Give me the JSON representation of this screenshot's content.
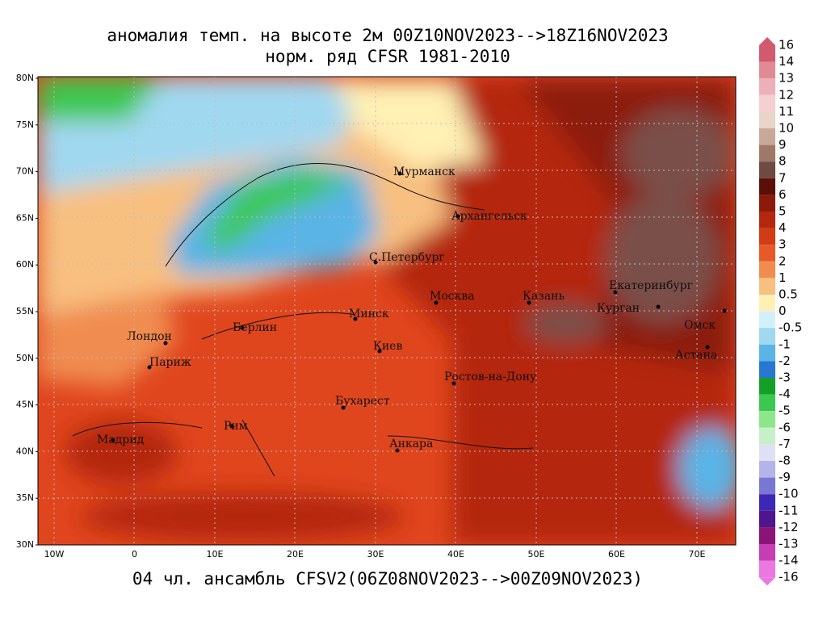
{
  "header": {
    "title": "аномалия темп. на высоте 2м 00Z10NOV2023-->18Z16NOV2023",
    "subtitle": "норм. ряд CFSR 1981-2010"
  },
  "footer": "04 чл. ансамбль CFSV2(06Z08NOV2023-->00Z09NOV2023)",
  "lat_labels": [
    "80N",
    "75N",
    "70N",
    "65N",
    "60N",
    "55N",
    "50N",
    "45N",
    "40N",
    "35N",
    "30N"
  ],
  "lon_labels": [
    "10W",
    "0",
    "10E",
    "20E",
    "30E",
    "40E",
    "50E",
    "60E",
    "70E"
  ],
  "cities": [
    "Мурманск",
    "Архангельск",
    "С.Петербург",
    "Москва",
    "Казань",
    "Екатеринбург",
    "Курган",
    "Омск",
    "Астана",
    "Минск",
    "Берлин",
    "Лондон",
    "Париж",
    "Киев",
    "Ростов-на-Дону",
    "Бухарест",
    "Рим",
    "Мадрид",
    "Анкара"
  ],
  "colorbar": {
    "labels": [
      "16",
      "14",
      "13",
      "12",
      "11",
      "10",
      "9",
      "8",
      "7",
      "6",
      "5",
      "4",
      "3",
      "2",
      "1",
      "0.5",
      "0",
      "-0.5",
      "-1",
      "-2",
      "-3",
      "-4",
      "-5",
      "-6",
      "-7",
      "-8",
      "-9",
      "-10",
      "-11",
      "-12",
      "-13",
      "-14",
      "-16"
    ],
    "colors": [
      "#d25a6e",
      "#e08a96",
      "#eeb0b8",
      "#f5d0d2",
      "#e8d4c8",
      "#c8a898",
      "#a07868",
      "#6e4a40",
      "#5a1008",
      "#8c1a0a",
      "#b42810",
      "#d23c14",
      "#e65a28",
      "#f08c50",
      "#f8c080",
      "#fff0b4",
      "#d2f0fa",
      "#a0d8f0",
      "#5ab4e6",
      "#2878d2",
      "#14a028",
      "#3cc850",
      "#8ce68c",
      "#c8f0c8",
      "#e0e0f5",
      "#b4b4eb",
      "#7878d2",
      "#3c28b4",
      "#50148c",
      "#8c1478",
      "#c83cb4",
      "#eb78e0"
    ]
  }
}
